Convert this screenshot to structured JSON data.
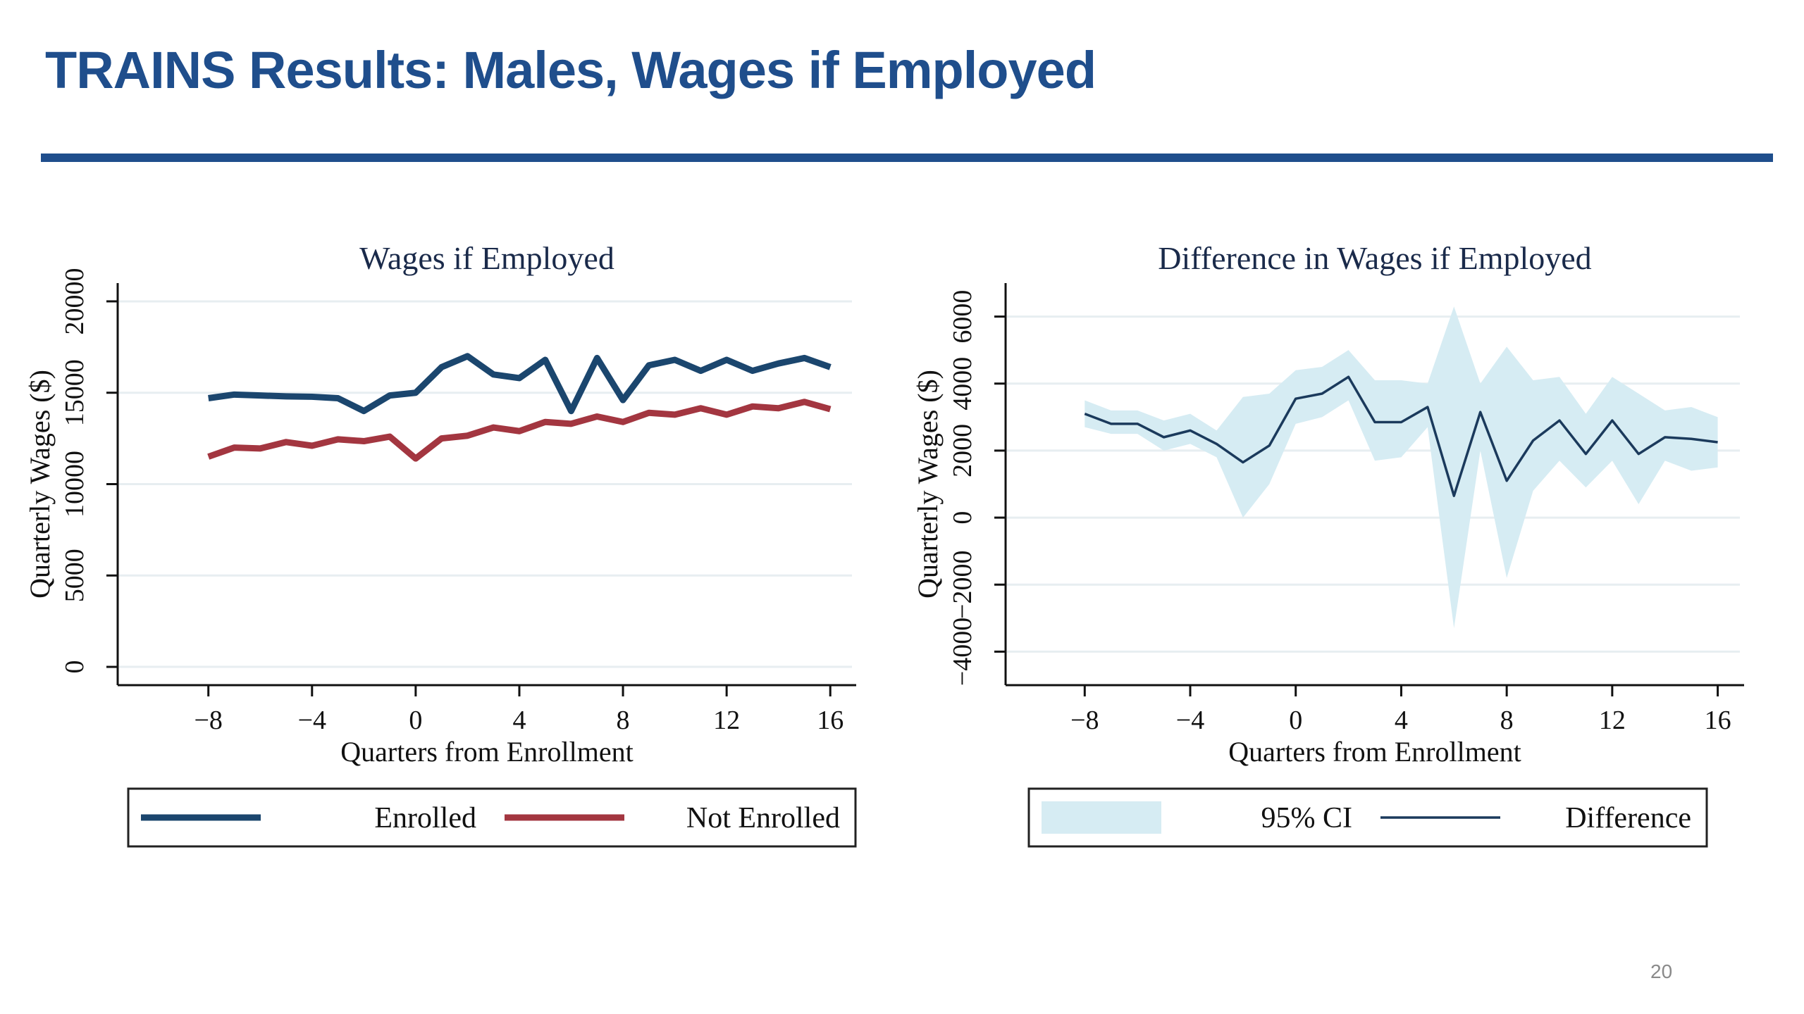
{
  "slide": {
    "title": "TRAINS Results: Males, Wages if Employed",
    "page_number": "20",
    "accent_color": "#1f4e8c"
  },
  "chart_data": [
    {
      "type": "line",
      "title": "Wages if Employed",
      "xlabel": "Quarters from Enrollment",
      "ylabel": "Quarterly Wages ($)",
      "xlim": [
        -11.5,
        17
      ],
      "ylim": [
        -1000,
        21000
      ],
      "x_ticks": [
        -8,
        -4,
        0,
        4,
        8,
        12,
        16
      ],
      "y_ticks": [
        0,
        5000,
        10000,
        15000,
        20000
      ],
      "grid": true,
      "legend_position": "bottom",
      "x": [
        -8,
        -7,
        -6,
        -5,
        -4,
        -3,
        -2,
        -1,
        0,
        1,
        2,
        3,
        4,
        5,
        6,
        7,
        8,
        9,
        10,
        11,
        12,
        13,
        14,
        15,
        16
      ],
      "series": [
        {
          "name": "Enrolled",
          "color": "#1b466e",
          "values": [
            14700,
            14900,
            14850,
            14800,
            14780,
            14700,
            14000,
            14850,
            15000,
            16400,
            17000,
            16000,
            15800,
            16800,
            14000,
            16900,
            14600,
            16500,
            16800,
            16200,
            16800,
            16200,
            16600,
            16900,
            16400
          ]
        },
        {
          "name": "Not Enrolled",
          "color": "#a33640",
          "values": [
            11500,
            12000,
            11950,
            12300,
            12100,
            12450,
            12350,
            12600,
            11400,
            12500,
            12650,
            13100,
            12900,
            13400,
            13300,
            13700,
            13400,
            13900,
            13800,
            14150,
            13800,
            14250,
            14150,
            14500,
            14100
          ]
        }
      ]
    },
    {
      "type": "area",
      "title": "Difference in Wages if Employed",
      "xlabel": "Quarters from Enrollment",
      "ylabel": "Quarterly Wages ($)",
      "xlim": [
        -11,
        17
      ],
      "ylim": [
        -5000,
        7000
      ],
      "x_ticks": [
        -8,
        -4,
        0,
        4,
        8,
        12,
        16
      ],
      "y_ticks": [
        -4000,
        -2000,
        0,
        2000,
        4000,
        6000
      ],
      "grid": true,
      "legend_position": "bottom",
      "x": [
        -8,
        -7,
        -6,
        -5,
        -4,
        -3,
        -2,
        -1,
        0,
        1,
        2,
        3,
        4,
        5,
        6,
        7,
        8,
        9,
        10,
        11,
        12,
        13,
        14,
        15,
        16
      ],
      "series": [
        {
          "name": "95% CI",
          "color": "#d6ecf3",
          "lower": [
            2700,
            2500,
            2500,
            2000,
            2200,
            1800,
            0,
            1000,
            2800,
            3000,
            3500,
            1700,
            1800,
            2700,
            -3300,
            2000,
            -1800,
            800,
            1700,
            900,
            1700,
            400,
            1700,
            1400,
            1500
          ],
          "upper": [
            3500,
            3200,
            3200,
            2900,
            3100,
            2600,
            3600,
            3700,
            4400,
            4500,
            5000,
            4100,
            4100,
            4000,
            6300,
            4000,
            5100,
            4100,
            4200,
            3100,
            4200,
            3700,
            3200,
            3300,
            3000
          ]
        },
        {
          "name": "Difference",
          "color": "#1b3a5c",
          "values": [
            3100,
            2800,
            2800,
            2400,
            2600,
            2200,
            1650,
            2150,
            3550,
            3700,
            4200,
            2850,
            2850,
            3300,
            650,
            3150,
            1100,
            2300,
            2900,
            1900,
            2900,
            1900,
            2400,
            2350,
            2250
          ]
        }
      ]
    }
  ]
}
